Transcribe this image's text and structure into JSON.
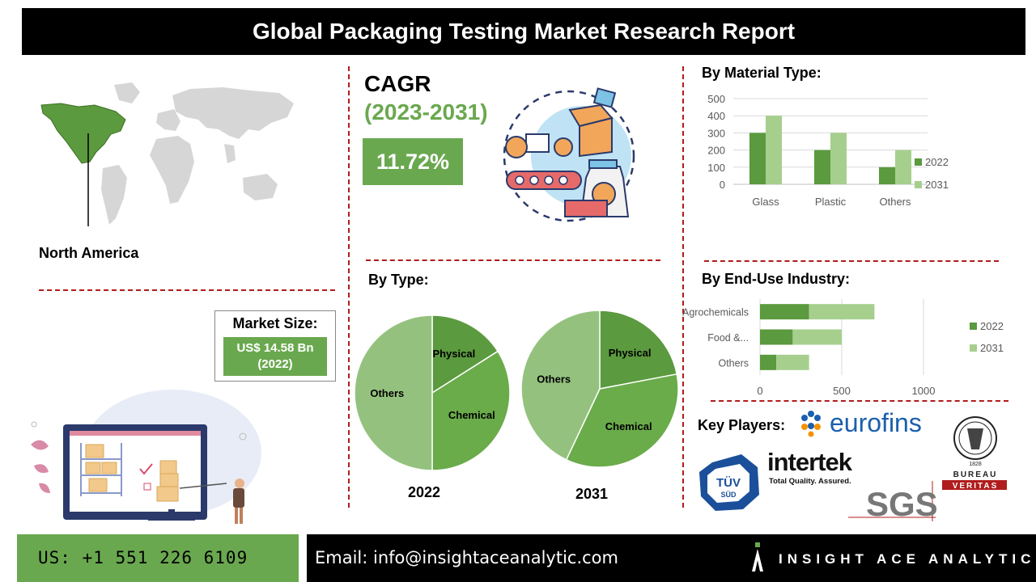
{
  "header": {
    "title": "Global Packaging Testing Market Research Report"
  },
  "region": {
    "label": "North America"
  },
  "market_size": {
    "title": "Market Size:",
    "value_line1": "US$ 14.58 Bn",
    "value_line2": "(2022)"
  },
  "cagr": {
    "title": "CAGR",
    "period": "(2023-2031)",
    "value": "11.72%"
  },
  "sections": {
    "material_title": "By Material Type:",
    "type_title": "By Type:",
    "end_use_title": "By End-Use Industry:",
    "key_players_title": "Key Players:"
  },
  "key_players": [
    "eurofins",
    "intertek",
    "Total Quality. Assured.",
    "TÜV",
    "SÜD",
    "SGS",
    "BUREAU",
    "VERITAS",
    "1828"
  ],
  "footer": {
    "phone": "US: +1 551 226 6109",
    "email": "Email: info@insightaceanalytic.com",
    "brand": "INSIGHT ACE ANALYTIC"
  },
  "colors": {
    "dark_green": "#5b9a3e",
    "light_green": "#a6cf8e",
    "accent_red": "#b01c1c",
    "brand_green": "#6aa84f"
  },
  "chart_data": [
    {
      "type": "bar",
      "title": "By Material Type:",
      "categories": [
        "Glass",
        "Plastic",
        "Others"
      ],
      "series": [
        {
          "name": "2022",
          "values": [
            300,
            200,
            100
          ]
        },
        {
          "name": "2031",
          "values": [
            400,
            300,
            200
          ]
        }
      ],
      "yticks": [
        "500",
        "400",
        "300",
        "200",
        "100",
        "0"
      ],
      "ylim": [
        0,
        500
      ],
      "grid": true,
      "legend": "right"
    },
    {
      "type": "pie",
      "title": "2022",
      "labels": [
        "Physical",
        "Chemical",
        "Others"
      ],
      "values": [
        16,
        34,
        50
      ]
    },
    {
      "type": "pie",
      "title": "2031",
      "labels": [
        "Physical",
        "Chemical",
        "Others"
      ],
      "values": [
        22,
        35,
        43
      ]
    },
    {
      "type": "bar",
      "orientation": "horizontal",
      "stacked": true,
      "title": "By End-Use Industry:",
      "categories": [
        "Agrochemicals",
        "Food &...",
        "Others"
      ],
      "series": [
        {
          "name": "2022",
          "values": [
            300,
            200,
            100
          ]
        },
        {
          "name": "2031",
          "values": [
            400,
            300,
            200
          ]
        }
      ],
      "xticks": [
        "0",
        "500",
        "1000"
      ],
      "xlim": [
        0,
        1000
      ],
      "grid": true,
      "legend": "right"
    }
  ]
}
